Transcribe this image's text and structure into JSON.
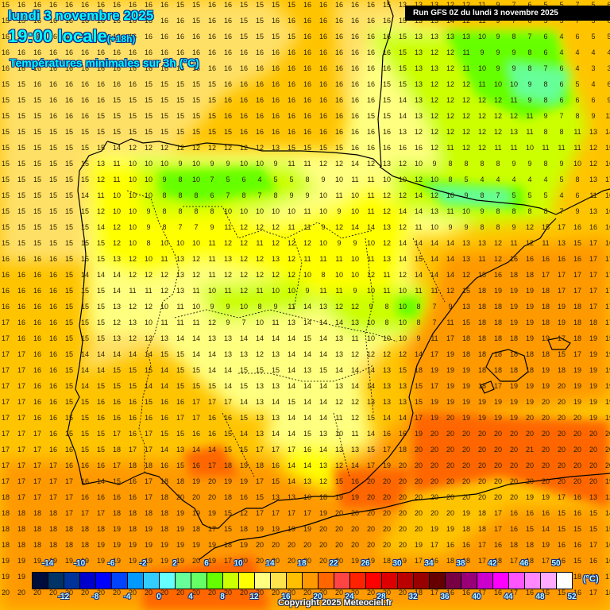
{
  "header": {
    "date": "lundi 3 novembre 2025",
    "time": "19:00 locale",
    "offset": "(+18h)",
    "product": "Températures minimales sur 3h (°C)",
    "run": "Run GFS 0Z du lundi 3 novembre 2025"
  },
  "footer": {
    "copyright": "Copyright 2025 Meteociel.fr",
    "unit": "(°C)"
  },
  "colorbar": {
    "colors": [
      "#000d3a",
      "#003366",
      "#003399",
      "#0000cc",
      "#0000ff",
      "#0044ff",
      "#0099ff",
      "#33ccff",
      "#66ffff",
      "#66ff99",
      "#66ff66",
      "#66ff00",
      "#ccff00",
      "#ffff00",
      "#ffff80",
      "#ffe34d",
      "#ffc000",
      "#ff9900",
      "#ff6600",
      "#ff4444",
      "#ff2200",
      "#ff0000",
      "#dd0000",
      "#bb0000",
      "#990000",
      "#660000",
      "#770044",
      "#990077",
      "#cc00cc",
      "#ff00ff",
      "#ff55ff",
      "#ff88ff",
      "#ffaaff",
      "#ffffff"
    ],
    "labels_top": [
      "-14",
      "-10",
      "-6",
      "-2",
      "2",
      "6",
      "10",
      "14",
      "18",
      "22",
      "26",
      "30",
      "34",
      "38",
      "42",
      "46",
      "50"
    ],
    "labels_bottom": [
      "-12",
      "-8",
      "-4",
      "0",
      "4",
      "8",
      "12",
      "16",
      "20",
      "24",
      "28",
      "32",
      "36",
      "40",
      "44",
      "48",
      "52"
    ]
  },
  "grid": {
    "rows": [
      [
        15,
        16,
        16,
        16,
        16,
        16,
        16,
        16,
        16,
        16,
        16,
        15,
        15,
        16,
        16,
        15,
        15,
        15,
        15,
        16,
        16,
        16,
        16,
        16,
        15,
        13,
        13,
        13,
        12,
        12,
        11,
        9,
        7,
        6,
        5,
        5,
        7,
        5,
        6
      ],
      [
        15,
        15,
        16,
        16,
        16,
        16,
        16,
        16,
        16,
        16,
        16,
        16,
        15,
        16,
        16,
        15,
        15,
        16,
        16,
        16,
        16,
        16,
        16,
        16,
        16,
        15,
        13,
        13,
        14,
        12,
        11,
        9,
        7,
        6,
        5,
        5,
        7,
        5,
        6
      ],
      [
        16,
        16,
        16,
        16,
        16,
        16,
        16,
        16,
        16,
        16,
        16,
        16,
        16,
        16,
        16,
        15,
        15,
        15,
        15,
        16,
        16,
        16,
        16,
        16,
        16,
        15,
        13,
        13,
        13,
        13,
        10,
        9,
        8,
        7,
        6,
        4,
        6,
        5,
        5
      ],
      [
        16,
        16,
        16,
        16,
        16,
        16,
        16,
        16,
        16,
        16,
        16,
        16,
        16,
        16,
        16,
        16,
        16,
        16,
        16,
        16,
        16,
        16,
        16,
        16,
        16,
        15,
        13,
        12,
        12,
        11,
        9,
        9,
        9,
        8,
        6,
        4,
        4,
        4,
        4
      ],
      [
        16,
        16,
        16,
        16,
        16,
        16,
        16,
        16,
        16,
        16,
        16,
        16,
        16,
        16,
        16,
        16,
        16,
        16,
        16,
        16,
        16,
        16,
        16,
        16,
        16,
        15,
        13,
        13,
        12,
        11,
        10,
        9,
        9,
        8,
        7,
        6,
        4,
        3,
        3
      ],
      [
        15,
        15,
        16,
        16,
        16,
        16,
        16,
        16,
        16,
        15,
        15,
        15,
        15,
        15,
        16,
        16,
        16,
        16,
        16,
        16,
        16,
        16,
        16,
        16,
        15,
        15,
        13,
        12,
        12,
        12,
        11,
        10,
        10,
        9,
        8,
        6,
        5,
        4,
        6
      ],
      [
        15,
        15,
        15,
        16,
        16,
        16,
        16,
        15,
        15,
        15,
        15,
        15,
        15,
        15,
        16,
        16,
        16,
        16,
        16,
        16,
        16,
        16,
        16,
        16,
        15,
        14,
        13,
        12,
        12,
        12,
        12,
        12,
        11,
        9,
        8,
        6,
        6,
        6,
        9
      ],
      [
        15,
        15,
        15,
        16,
        16,
        16,
        15,
        15,
        15,
        15,
        15,
        15,
        15,
        15,
        16,
        16,
        16,
        16,
        16,
        16,
        16,
        16,
        16,
        15,
        15,
        14,
        13,
        12,
        12,
        12,
        12,
        12,
        12,
        11,
        9,
        7,
        8,
        9,
        11
      ],
      [
        15,
        15,
        15,
        15,
        15,
        15,
        15,
        15,
        15,
        15,
        15,
        15,
        15,
        15,
        15,
        16,
        16,
        16,
        16,
        16,
        16,
        16,
        16,
        16,
        16,
        13,
        12,
        12,
        12,
        12,
        12,
        12,
        13,
        11,
        8,
        8,
        11,
        13,
        14
      ],
      [
        15,
        15,
        15,
        15,
        15,
        15,
        15,
        14,
        12,
        12,
        12,
        12,
        12,
        12,
        12,
        12,
        12,
        13,
        15,
        15,
        15,
        15,
        16,
        16,
        16,
        16,
        16,
        12,
        11,
        12,
        12,
        11,
        11,
        10,
        11,
        11,
        11,
        12,
        15
      ],
      [
        15,
        15,
        15,
        15,
        15,
        15,
        13,
        11,
        10,
        10,
        10,
        9,
        10,
        9,
        9,
        10,
        10,
        9,
        11,
        11,
        12,
        12,
        14,
        12,
        13,
        12,
        10,
        9,
        8,
        8,
        8,
        8,
        9,
        9,
        8,
        9,
        10,
        12,
        16
      ],
      [
        15,
        15,
        15,
        15,
        15,
        15,
        12,
        11,
        10,
        10,
        9,
        8,
        10,
        7,
        5,
        6,
        4,
        5,
        5,
        8,
        9,
        10,
        11,
        11,
        10,
        10,
        12,
        10,
        8,
        5,
        4,
        4,
        4,
        4,
        4,
        5,
        8,
        13,
        17
      ],
      [
        15,
        15,
        15,
        15,
        15,
        14,
        11,
        10,
        10,
        10,
        8,
        8,
        8,
        6,
        7,
        8,
        7,
        8,
        9,
        9,
        10,
        11,
        10,
        11,
        12,
        12,
        14,
        12,
        10,
        9,
        8,
        7,
        5,
        5,
        5,
        4,
        6,
        11,
        16
      ],
      [
        15,
        15,
        15,
        15,
        15,
        15,
        12,
        10,
        10,
        9,
        8,
        8,
        8,
        8,
        10,
        10,
        10,
        10,
        10,
        11,
        10,
        9,
        10,
        11,
        12,
        14,
        14,
        13,
        11,
        10,
        9,
        8,
        8,
        8,
        8,
        7,
        9,
        13,
        16
      ],
      [
        15,
        15,
        15,
        15,
        15,
        15,
        14,
        12,
        10,
        9,
        8,
        7,
        7,
        9,
        11,
        12,
        12,
        12,
        11,
        11,
        9,
        12,
        14,
        14,
        13,
        12,
        11,
        10,
        9,
        9,
        8,
        8,
        9,
        12,
        15,
        17,
        16,
        16,
        16
      ],
      [
        15,
        15,
        15,
        15,
        15,
        15,
        15,
        12,
        10,
        8,
        10,
        10,
        10,
        11,
        12,
        12,
        11,
        12,
        12,
        12,
        10,
        9,
        9,
        10,
        12,
        14,
        14,
        14,
        14,
        13,
        13,
        12,
        11,
        12,
        11,
        13,
        15,
        17,
        16
      ],
      [
        16,
        16,
        16,
        16,
        15,
        15,
        15,
        13,
        12,
        10,
        11,
        13,
        12,
        11,
        13,
        12,
        12,
        13,
        12,
        11,
        11,
        11,
        10,
        11,
        13,
        14,
        15,
        14,
        14,
        13,
        11,
        12,
        16,
        16,
        16,
        16,
        16,
        17,
        17
      ],
      [
        16,
        16,
        16,
        16,
        15,
        14,
        14,
        14,
        12,
        12,
        12,
        13,
        12,
        11,
        12,
        12,
        12,
        12,
        12,
        10,
        8,
        10,
        10,
        12,
        11,
        12,
        14,
        14,
        14,
        12,
        15,
        16,
        18,
        18,
        17,
        17,
        17,
        17,
        17
      ],
      [
        16,
        16,
        16,
        16,
        15,
        15,
        15,
        14,
        11,
        11,
        12,
        13,
        11,
        10,
        11,
        12,
        11,
        10,
        10,
        9,
        11,
        11,
        9,
        10,
        11,
        10,
        11,
        11,
        12,
        15,
        18,
        19,
        19,
        19,
        18,
        17,
        17,
        17,
        17
      ],
      [
        16,
        16,
        16,
        16,
        15,
        15,
        15,
        13,
        12,
        12,
        10,
        11,
        10,
        9,
        9,
        10,
        8,
        9,
        11,
        14,
        13,
        12,
        12,
        9,
        8,
        10,
        8,
        7,
        9,
        13,
        18,
        18,
        19,
        19,
        18,
        19,
        18,
        17,
        17
      ],
      [
        17,
        16,
        16,
        16,
        15,
        15,
        15,
        12,
        13,
        10,
        11,
        11,
        11,
        12,
        9,
        7,
        10,
        11,
        13,
        14,
        14,
        14,
        13,
        10,
        8,
        10,
        8,
        7,
        11,
        15,
        18,
        18,
        19,
        19,
        18,
        19,
        18,
        18,
        17
      ],
      [
        17,
        16,
        16,
        16,
        15,
        15,
        15,
        13,
        12,
        12,
        13,
        14,
        14,
        13,
        13,
        14,
        14,
        14,
        14,
        15,
        14,
        13,
        11,
        10,
        10,
        10,
        9,
        11,
        17,
        18,
        18,
        18,
        18,
        19,
        19,
        17,
        18,
        19,
        15
      ],
      [
        17,
        17,
        16,
        16,
        15,
        14,
        14,
        14,
        14,
        14,
        15,
        15,
        14,
        14,
        13,
        13,
        12,
        13,
        14,
        14,
        14,
        13,
        12,
        12,
        12,
        12,
        14,
        17,
        19,
        18,
        18,
        18,
        18,
        18,
        18,
        15,
        17,
        19,
        19
      ],
      [
        17,
        17,
        16,
        16,
        15,
        14,
        14,
        15,
        15,
        15,
        14,
        15,
        15,
        14,
        14,
        15,
        15,
        15,
        14,
        13,
        15,
        14,
        14,
        14,
        13,
        15,
        18,
        19,
        19,
        19,
        18,
        18,
        18,
        18,
        19,
        18,
        19,
        19,
        19
      ],
      [
        17,
        17,
        16,
        16,
        15,
        14,
        15,
        15,
        15,
        14,
        14,
        15,
        15,
        15,
        14,
        15,
        13,
        13,
        14,
        14,
        14,
        13,
        14,
        14,
        13,
        13,
        15,
        17,
        19,
        19,
        18,
        17,
        19,
        19,
        19,
        20,
        19,
        19,
        19
      ],
      [
        17,
        17,
        16,
        16,
        15,
        15,
        16,
        16,
        16,
        15,
        16,
        16,
        17,
        17,
        17,
        14,
        13,
        14,
        15,
        14,
        14,
        12,
        12,
        13,
        13,
        13,
        15,
        19,
        19,
        19,
        19,
        19,
        19,
        19,
        20,
        20,
        19,
        19,
        19
      ],
      [
        17,
        17,
        16,
        16,
        15,
        15,
        16,
        16,
        16,
        16,
        16,
        17,
        17,
        16,
        16,
        15,
        13,
        13,
        14,
        14,
        14,
        11,
        12,
        15,
        14,
        14,
        17,
        19,
        20,
        19,
        19,
        19,
        19,
        20,
        20,
        20,
        20,
        19,
        19
      ],
      [
        17,
        17,
        17,
        16,
        15,
        15,
        15,
        17,
        16,
        17,
        15,
        15,
        16,
        16,
        15,
        14,
        13,
        14,
        14,
        15,
        13,
        10,
        11,
        14,
        16,
        16,
        19,
        20,
        20,
        20,
        20,
        20,
        20,
        20,
        20,
        20,
        20,
        20,
        20
      ],
      [
        17,
        17,
        17,
        16,
        16,
        15,
        15,
        18,
        17,
        17,
        14,
        13,
        14,
        14,
        15,
        15,
        17,
        17,
        17,
        16,
        14,
        13,
        13,
        15,
        17,
        18,
        20,
        20,
        20,
        20,
        20,
        20,
        20,
        21,
        20,
        20,
        20,
        20,
        20
      ],
      [
        17,
        17,
        17,
        17,
        16,
        16,
        16,
        17,
        18,
        18,
        16,
        15,
        16,
        17,
        18,
        19,
        18,
        16,
        14,
        14,
        13,
        12,
        14,
        17,
        19,
        20,
        20,
        20,
        20,
        20,
        20,
        20,
        20,
        20,
        20,
        20,
        20,
        20,
        20
      ],
      [
        17,
        17,
        17,
        17,
        17,
        16,
        14,
        15,
        16,
        17,
        18,
        18,
        19,
        20,
        19,
        19,
        17,
        15,
        14,
        13,
        12,
        15,
        16,
        20,
        20,
        20,
        20,
        20,
        20,
        20,
        20,
        20,
        20,
        20,
        20,
        20,
        20,
        20,
        19
      ],
      [
        18,
        17,
        17,
        17,
        17,
        16,
        16,
        16,
        16,
        17,
        18,
        20,
        20,
        20,
        18,
        16,
        15,
        13,
        13,
        10,
        18,
        19,
        19,
        20,
        20,
        20,
        20,
        20,
        20,
        20,
        20,
        20,
        20,
        19,
        19,
        17,
        16,
        13,
        13
      ],
      [
        18,
        18,
        18,
        18,
        17,
        17,
        17,
        18,
        18,
        18,
        18,
        19,
        19,
        19,
        15,
        12,
        17,
        17,
        17,
        17,
        19,
        20,
        20,
        20,
        20,
        20,
        20,
        20,
        20,
        19,
        18,
        17,
        16,
        16,
        16,
        15,
        16,
        15,
        14
      ],
      [
        18,
        18,
        18,
        18,
        18,
        18,
        18,
        19,
        18,
        19,
        18,
        19,
        18,
        17,
        15,
        18,
        19,
        19,
        19,
        19,
        20,
        20,
        20,
        20,
        20,
        20,
        20,
        19,
        19,
        18,
        18,
        17,
        16,
        15,
        14,
        15,
        15,
        15,
        15
      ],
      [
        18,
        18,
        18,
        18,
        18,
        18,
        19,
        19,
        19,
        19,
        19,
        19,
        19,
        19,
        18,
        19,
        20,
        20,
        20,
        20,
        20,
        20,
        20,
        20,
        20,
        20,
        19,
        17,
        16,
        16,
        17,
        16,
        18,
        18,
        19,
        16,
        16,
        17,
        16
      ],
      [
        19,
        19,
        19,
        19,
        19,
        19,
        19,
        19,
        19,
        19,
        19,
        19,
        20,
        19,
        17,
        20,
        20,
        20,
        20,
        20,
        20,
        20,
        19,
        19,
        18,
        19,
        17,
        16,
        18,
        18,
        17,
        18,
        17,
        18,
        17,
        16,
        15,
        16,
        16
      ],
      [
        19,
        19,
        19,
        19,
        19,
        19,
        20,
        20,
        20,
        20,
        20,
        20,
        20,
        20,
        20,
        20,
        20,
        20,
        20,
        20,
        20,
        19,
        19,
        18,
        19,
        17,
        16,
        15,
        15,
        14,
        15,
        15,
        16,
        16,
        17,
        17,
        18,
        16,
        17
      ],
      [
        20,
        20,
        20,
        20,
        20,
        20,
        20,
        20,
        20,
        20,
        20,
        20,
        20,
        20,
        20,
        20,
        20,
        20,
        20,
        20,
        20,
        20,
        20,
        20,
        20,
        20,
        18,
        17,
        16,
        16,
        17,
        16,
        17,
        16,
        15,
        15,
        16,
        17,
        18
      ]
    ]
  }
}
